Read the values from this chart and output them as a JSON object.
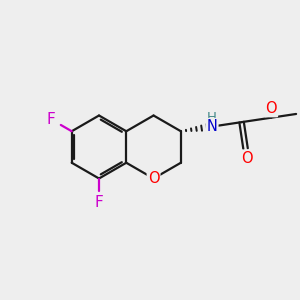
{
  "background_color": "#eeeeee",
  "bond_color": "#1a1a1a",
  "atom_colors": {
    "F": "#cc00cc",
    "O": "#ff0000",
    "N": "#0000cc",
    "H_N": "#448888",
    "C": "#1a1a1a"
  },
  "bond_width": 1.6,
  "figsize": [
    3.0,
    3.0
  ],
  "dpi": 100,
  "atoms": {
    "bcx": 3.3,
    "bcy": 5.1,
    "bl": 1.05
  }
}
